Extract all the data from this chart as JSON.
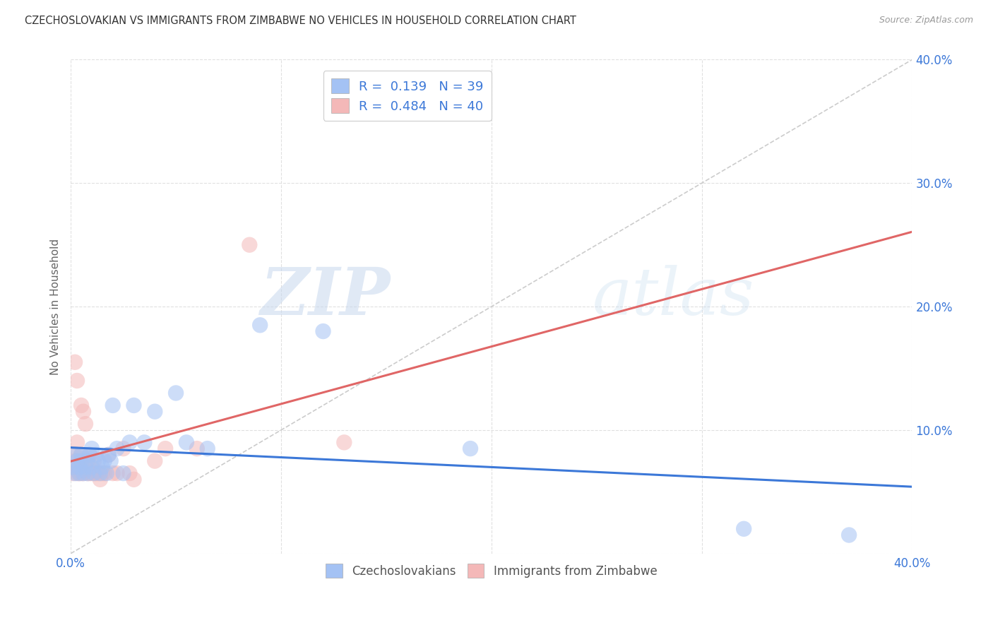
{
  "title": "CZECHOSLOVAKIAN VS IMMIGRANTS FROM ZIMBABWE NO VEHICLES IN HOUSEHOLD CORRELATION CHART",
  "source": "Source: ZipAtlas.com",
  "ylabel": "No Vehicles in Household",
  "xlim": [
    0.0,
    0.4
  ],
  "ylim": [
    0.0,
    0.4
  ],
  "xticks": [
    0.0,
    0.1,
    0.2,
    0.3,
    0.4
  ],
  "yticks": [
    0.0,
    0.1,
    0.2,
    0.3,
    0.4
  ],
  "blue_color": "#a4c2f4",
  "pink_color": "#f4b8b8",
  "blue_line_color": "#3c78d8",
  "pink_line_color": "#e06666",
  "diagonal_color": "#cccccc",
  "legend_R_blue": "0.139",
  "legend_N_blue": "39",
  "legend_R_pink": "0.484",
  "legend_N_pink": "40",
  "blue_scatter_x": [
    0.001,
    0.002,
    0.003,
    0.003,
    0.004,
    0.004,
    0.005,
    0.005,
    0.006,
    0.007,
    0.008,
    0.008,
    0.009,
    0.01,
    0.01,
    0.011,
    0.012,
    0.013,
    0.014,
    0.015,
    0.016,
    0.017,
    0.018,
    0.019,
    0.02,
    0.022,
    0.025,
    0.028,
    0.03,
    0.035,
    0.04,
    0.05,
    0.055,
    0.065,
    0.09,
    0.12,
    0.19,
    0.32,
    0.37
  ],
  "blue_scatter_y": [
    0.07,
    0.065,
    0.08,
    0.075,
    0.07,
    0.065,
    0.075,
    0.08,
    0.065,
    0.07,
    0.075,
    0.065,
    0.08,
    0.085,
    0.07,
    0.065,
    0.08,
    0.075,
    0.065,
    0.07,
    0.075,
    0.065,
    0.08,
    0.075,
    0.12,
    0.085,
    0.065,
    0.09,
    0.12,
    0.09,
    0.115,
    0.13,
    0.09,
    0.085,
    0.185,
    0.18,
    0.085,
    0.02,
    0.015
  ],
  "pink_scatter_x": [
    0.001,
    0.001,
    0.002,
    0.002,
    0.002,
    0.003,
    0.003,
    0.003,
    0.004,
    0.004,
    0.005,
    0.005,
    0.005,
    0.006,
    0.006,
    0.007,
    0.007,
    0.008,
    0.008,
    0.009,
    0.009,
    0.01,
    0.01,
    0.011,
    0.012,
    0.013,
    0.014,
    0.015,
    0.016,
    0.018,
    0.02,
    0.022,
    0.025,
    0.028,
    0.03,
    0.04,
    0.045,
    0.06,
    0.085,
    0.13
  ],
  "pink_scatter_y": [
    0.065,
    0.07,
    0.075,
    0.08,
    0.155,
    0.065,
    0.09,
    0.14,
    0.065,
    0.07,
    0.065,
    0.08,
    0.12,
    0.065,
    0.115,
    0.07,
    0.105,
    0.065,
    0.075,
    0.065,
    0.08,
    0.065,
    0.07,
    0.075,
    0.065,
    0.065,
    0.06,
    0.065,
    0.065,
    0.08,
    0.065,
    0.065,
    0.085,
    0.065,
    0.06,
    0.075,
    0.085,
    0.085,
    0.25,
    0.09
  ],
  "watermark_zip": "ZIP",
  "watermark_atlas": "atlas",
  "background_color": "#ffffff",
  "grid_color": "#e0e0e0",
  "label_color": "#3c78d8",
  "ylabel_color": "#666666",
  "title_color": "#333333",
  "source_color": "#999999"
}
